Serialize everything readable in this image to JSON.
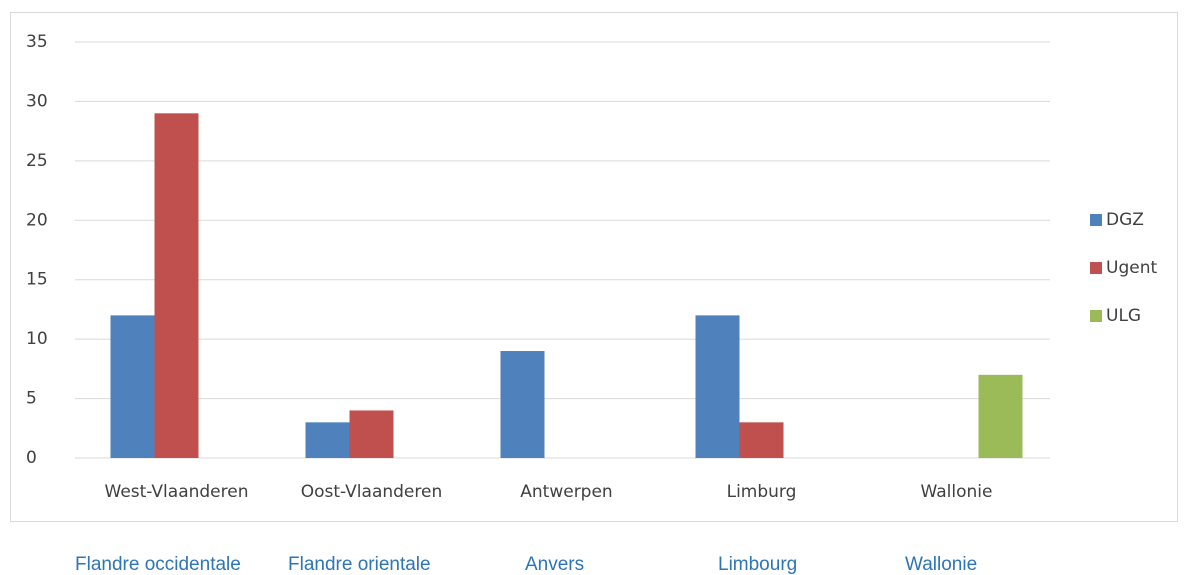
{
  "chart_data": {
    "type": "bar",
    "categories": [
      "West-Vlaanderen",
      "Oost-Vlaanderen",
      "Antwerpen",
      "Limburg",
      "Wallonie"
    ],
    "series": [
      {
        "name": "DGZ",
        "color": "#4f81bd",
        "values": [
          12,
          3,
          9,
          12,
          null
        ]
      },
      {
        "name": "Ugent",
        "color": "#c0504d",
        "values": [
          29,
          4,
          null,
          3,
          null
        ]
      },
      {
        "name": "ULG",
        "color": "#9bbb59",
        "values": [
          null,
          null,
          null,
          null,
          7
        ]
      }
    ],
    "ylim": [
      0,
      35
    ],
    "yticks": [
      0,
      5,
      10,
      15,
      20,
      25,
      30,
      35
    ],
    "grid": true,
    "legend": "right",
    "annotations": [
      "Flandre occidentale",
      "Flandre orientale",
      "Anvers",
      "Limbourg",
      "Wallonie"
    ]
  }
}
